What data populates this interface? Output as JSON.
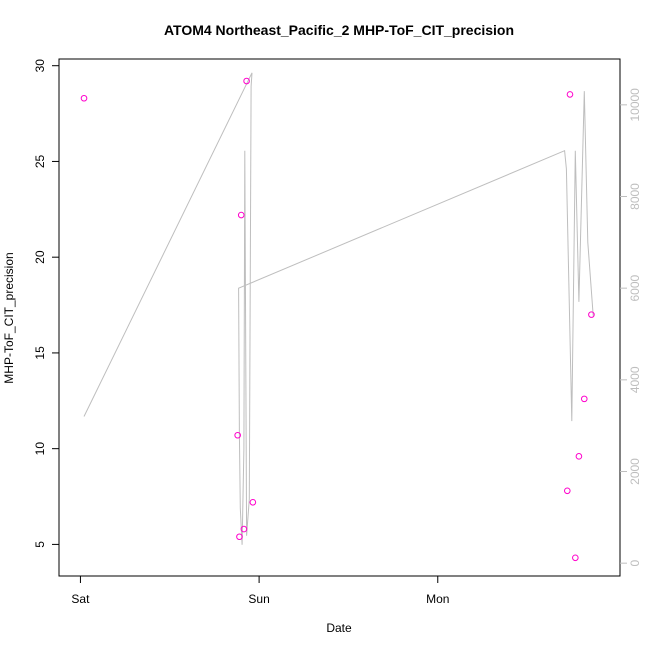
{
  "chart_data": {
    "type": "scatter",
    "title": "ATOM4 Northeast_Pacific_2 MHP-ToF_CIT_precision",
    "xlabel": "Date",
    "ylabel": "MHP-ToF_CIT_precision",
    "x_ticks": [
      {
        "label": "Sat",
        "day": 0
      },
      {
        "label": "Sun",
        "day": 1
      },
      {
        "label": "Mon",
        "day": 2
      }
    ],
    "xlim_days": [
      -0.12,
      3.02
    ],
    "ylim": [
      3.35,
      30.35
    ],
    "y_ticks": [
      5,
      10,
      15,
      20,
      25,
      30
    ],
    "y2lim": [
      -280,
      11000
    ],
    "y2_ticks": [
      0,
      2000,
      4000,
      6000,
      8000,
      10000
    ],
    "points_color": "#ff00cc",
    "line_color": "#bebebe",
    "series": [
      {
        "axis": "left",
        "style": "points",
        "x_days": [
          0.02,
          0.89,
          0.9,
          0.88,
          0.915,
          0.93,
          0.965,
          2.725,
          2.74,
          2.77,
          2.79,
          2.82,
          2.86
        ],
        "y": [
          28.3,
          5.4,
          22.2,
          10.7,
          5.8,
          29.2,
          7.2,
          7.8,
          28.5,
          4.3,
          9.6,
          12.6,
          17.0
        ]
      },
      {
        "axis": "right",
        "style": "line",
        "x_days": [
          0.02,
          0.96,
          0.955,
          0.945,
          0.93,
          0.92,
          0.915,
          0.905,
          0.895,
          0.89,
          0.885,
          2.71,
          2.72,
          2.75,
          2.77,
          2.79,
          2.82,
          2.84,
          2.87
        ],
        "y": [
          3200,
          10700,
          10400,
          1400,
          600,
          9000,
          2500,
          400,
          1200,
          2800,
          6000,
          9000,
          8600,
          3100,
          9000,
          5700,
          10300,
          7000,
          5400
        ]
      }
    ]
  }
}
